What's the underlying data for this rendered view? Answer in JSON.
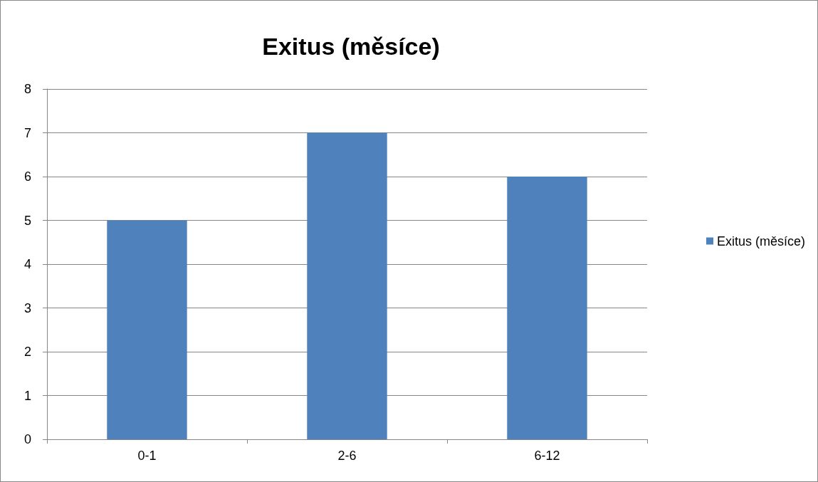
{
  "chart_data": {
    "type": "bar",
    "title": "Exitus (měsíce)",
    "categories": [
      "0-1",
      "2-6",
      "6-12"
    ],
    "series": [
      {
        "name": "Exitus (měsíce)",
        "color": "#4f81bd",
        "values": [
          5,
          7,
          6
        ]
      }
    ],
    "ylim": [
      0,
      8
    ],
    "yticks": [
      0,
      1,
      2,
      3,
      4,
      5,
      6,
      7,
      8
    ],
    "grid": "y",
    "legend": "right"
  }
}
